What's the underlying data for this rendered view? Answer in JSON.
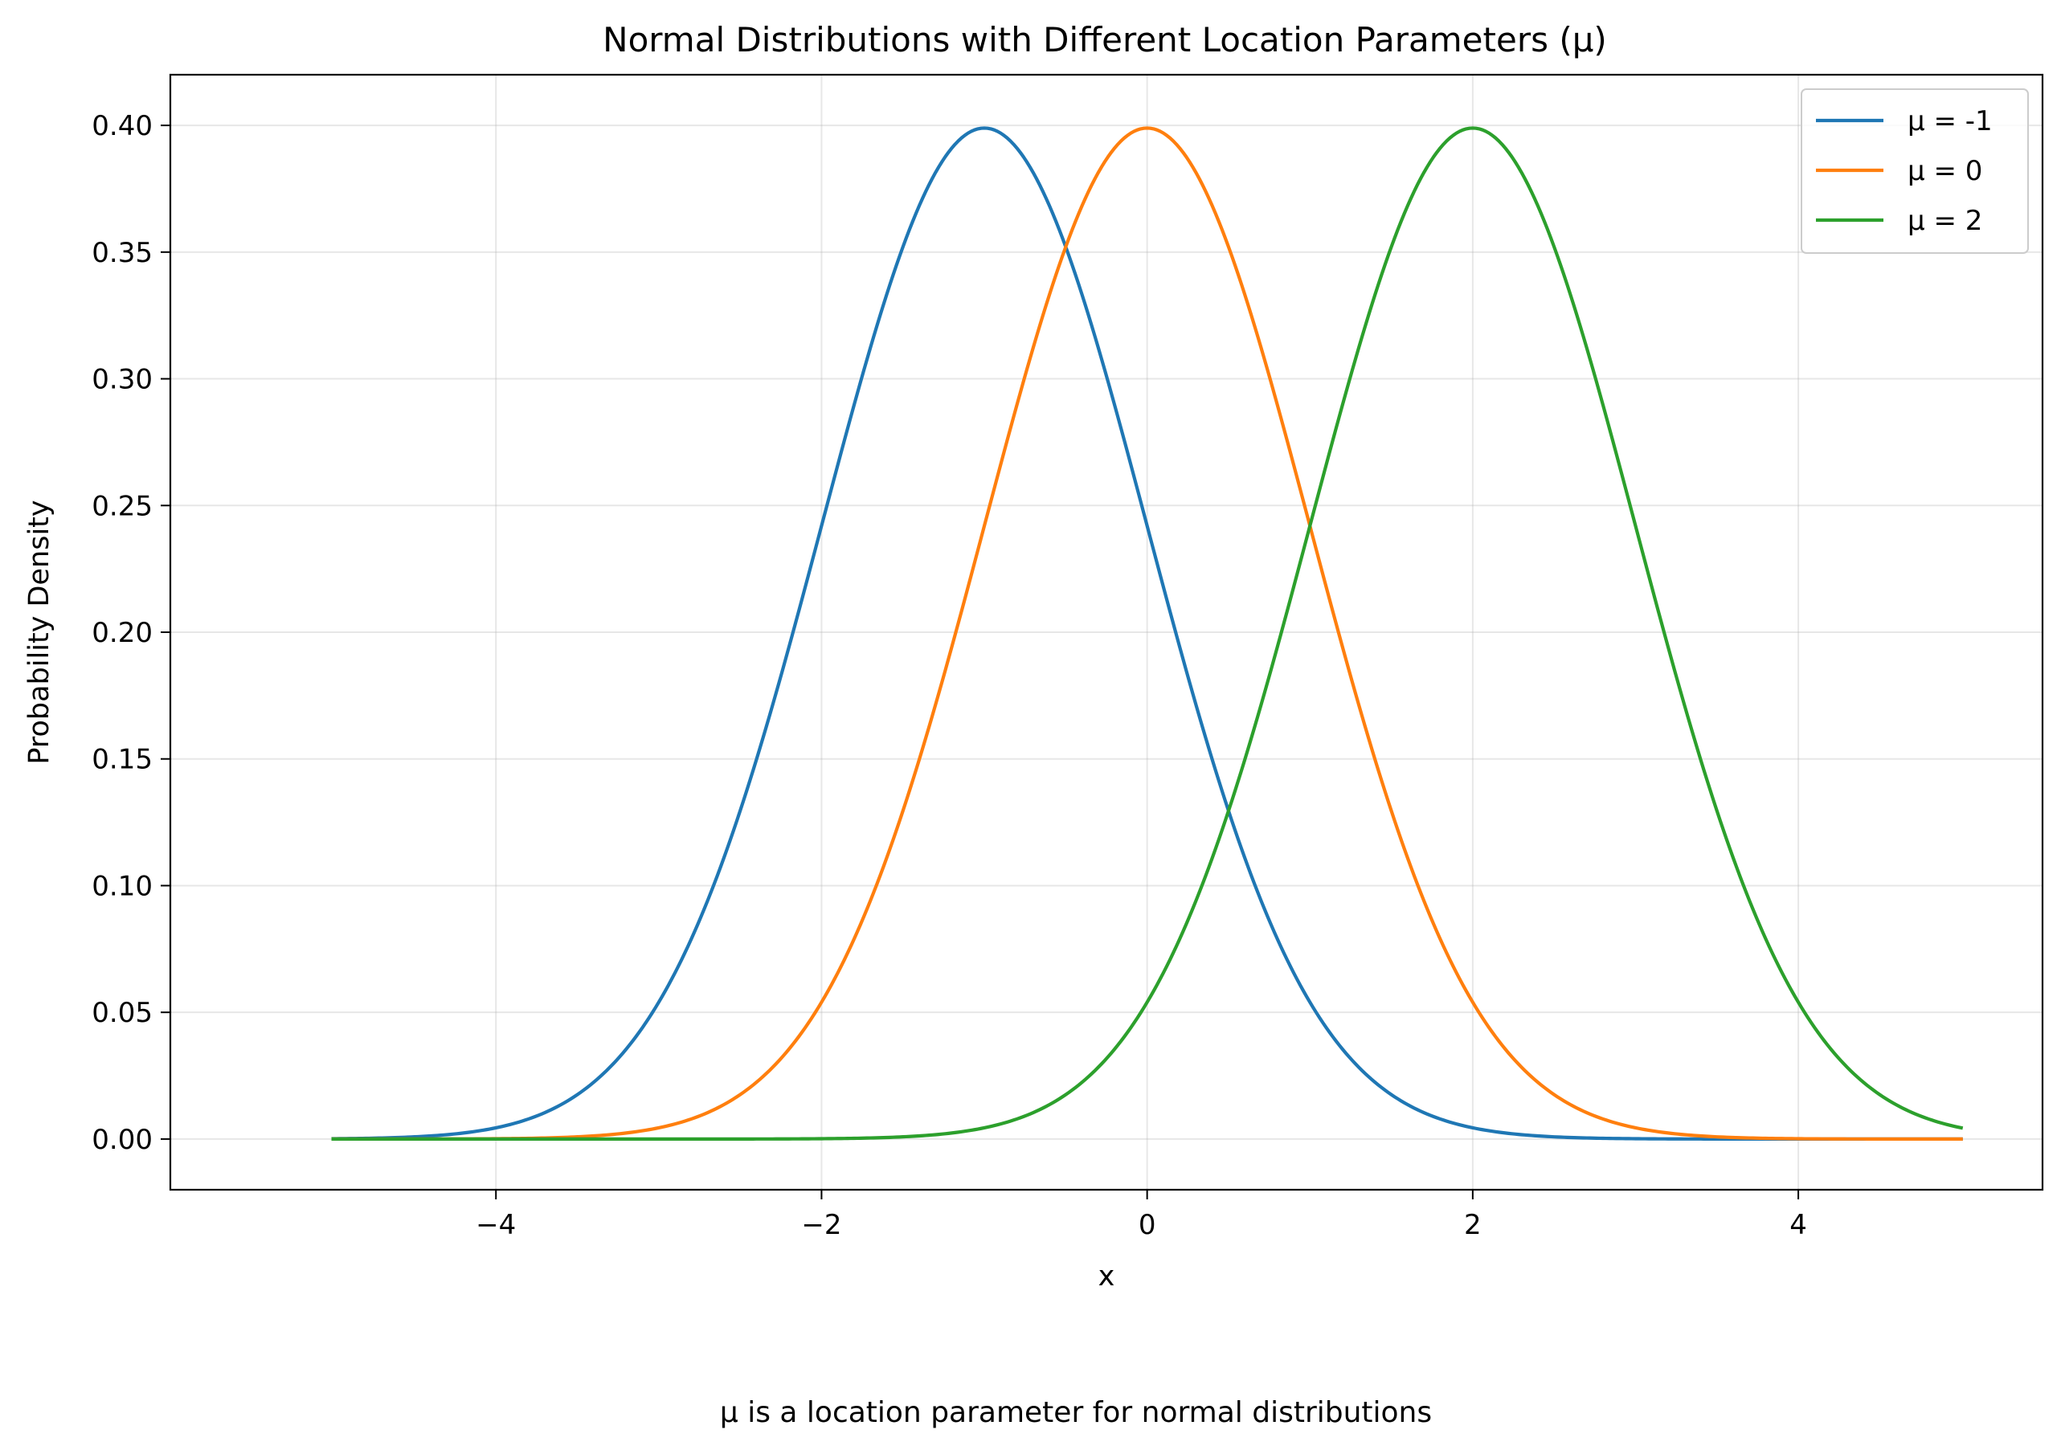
{
  "chart_data": {
    "type": "line",
    "title": "Normal Distributions with Different Location Parameters (μ)",
    "xlabel": "x",
    "ylabel": "Probability Density",
    "caption": "μ is a location parameter for normal distributions",
    "xlim": [
      -6.0,
      5.5
    ],
    "ylim": [
      -0.02,
      0.42
    ],
    "x_range": [
      -5,
      5
    ],
    "xticks": [
      -4,
      -2,
      0,
      2,
      4
    ],
    "xtick_labels": [
      "−4",
      "−2",
      "0",
      "2",
      "4"
    ],
    "yticks": [
      0.0,
      0.05,
      0.1,
      0.15,
      0.2,
      0.25,
      0.3,
      0.35,
      0.4
    ],
    "ytick_labels": [
      "0.00",
      "0.05",
      "0.10",
      "0.15",
      "0.20",
      "0.25",
      "0.30",
      "0.35",
      "0.40"
    ],
    "grid": true,
    "legend_position": "top-right",
    "series": [
      {
        "name": "μ = -1",
        "mu": -1,
        "sigma": 1,
        "color": "#1f77b4"
      },
      {
        "name": "μ = 0",
        "mu": 0,
        "sigma": 1,
        "color": "#ff7f0e"
      },
      {
        "name": "μ = 2",
        "mu": 2,
        "sigma": 1,
        "color": "#2ca02c"
      }
    ]
  }
}
